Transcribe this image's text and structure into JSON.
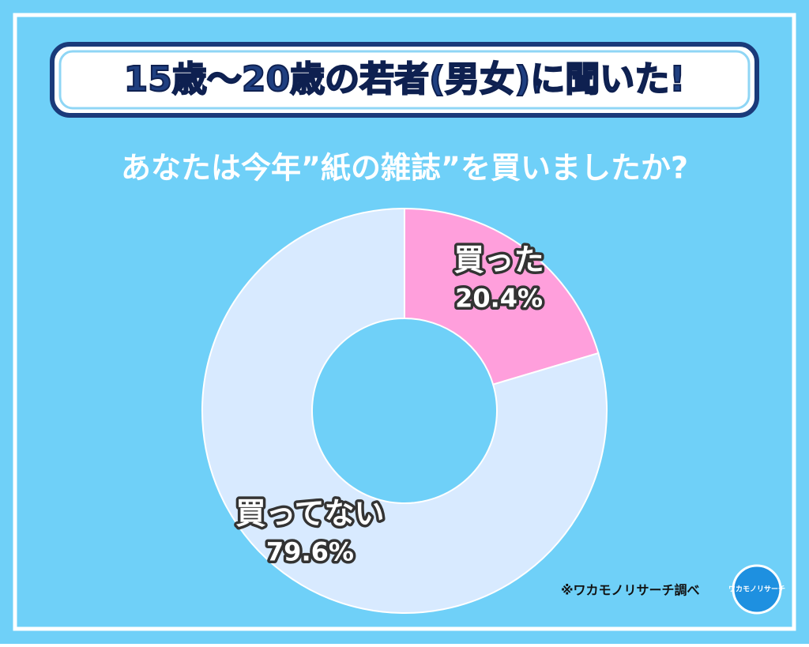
{
  "chart_data": {
    "type": "pie",
    "title": "15歳～20歳の若者(男女)に聞いた!",
    "subtitle": "あなたは今年”紙の雑誌”を買いましたか?",
    "categories": [
      "買った",
      "買ってない"
    ],
    "values": [
      20.4,
      79.6
    ],
    "value_labels": [
      "20.4%",
      "79.6%"
    ],
    "colors": [
      "#ff9fdc",
      "#d8eaff"
    ],
    "donut": true,
    "source": "※ワカモノリサーチ調べ",
    "logo": "ワカモノリサーチ"
  }
}
